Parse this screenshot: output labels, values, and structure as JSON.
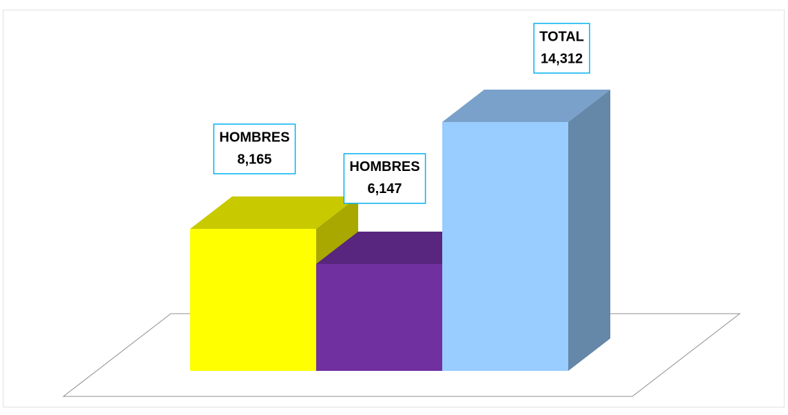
{
  "chart_data": {
    "type": "bar3d",
    "categories": [
      "HOMBRES",
      "HOMBRES",
      "TOTAL"
    ],
    "values": [
      8165,
      6147,
      14312
    ],
    "value_labels": [
      "8,165",
      "6,147",
      "14,312"
    ],
    "colors": [
      "#ffff00",
      "#7030a0",
      "#99ccff"
    ]
  }
}
